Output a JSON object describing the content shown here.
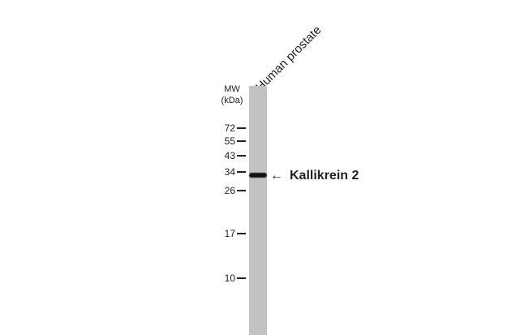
{
  "lane_label": "Human prostate",
  "mw_label": [
    "MW",
    "(kDa)"
  ],
  "markers": [
    {
      "label": "72",
      "kda": 72
    },
    {
      "label": "55",
      "kda": 55
    },
    {
      "label": "43",
      "kda": 43
    },
    {
      "label": "34",
      "kda": 34
    },
    {
      "label": "26",
      "kda": 26
    },
    {
      "label": "17",
      "kda": 17
    },
    {
      "label": "10",
      "kda": 10
    }
  ],
  "band_label": "Kallikrein 2",
  "arrow": "←",
  "colors": {
    "lane": "#c2c2c2",
    "band": "#111111"
  }
}
